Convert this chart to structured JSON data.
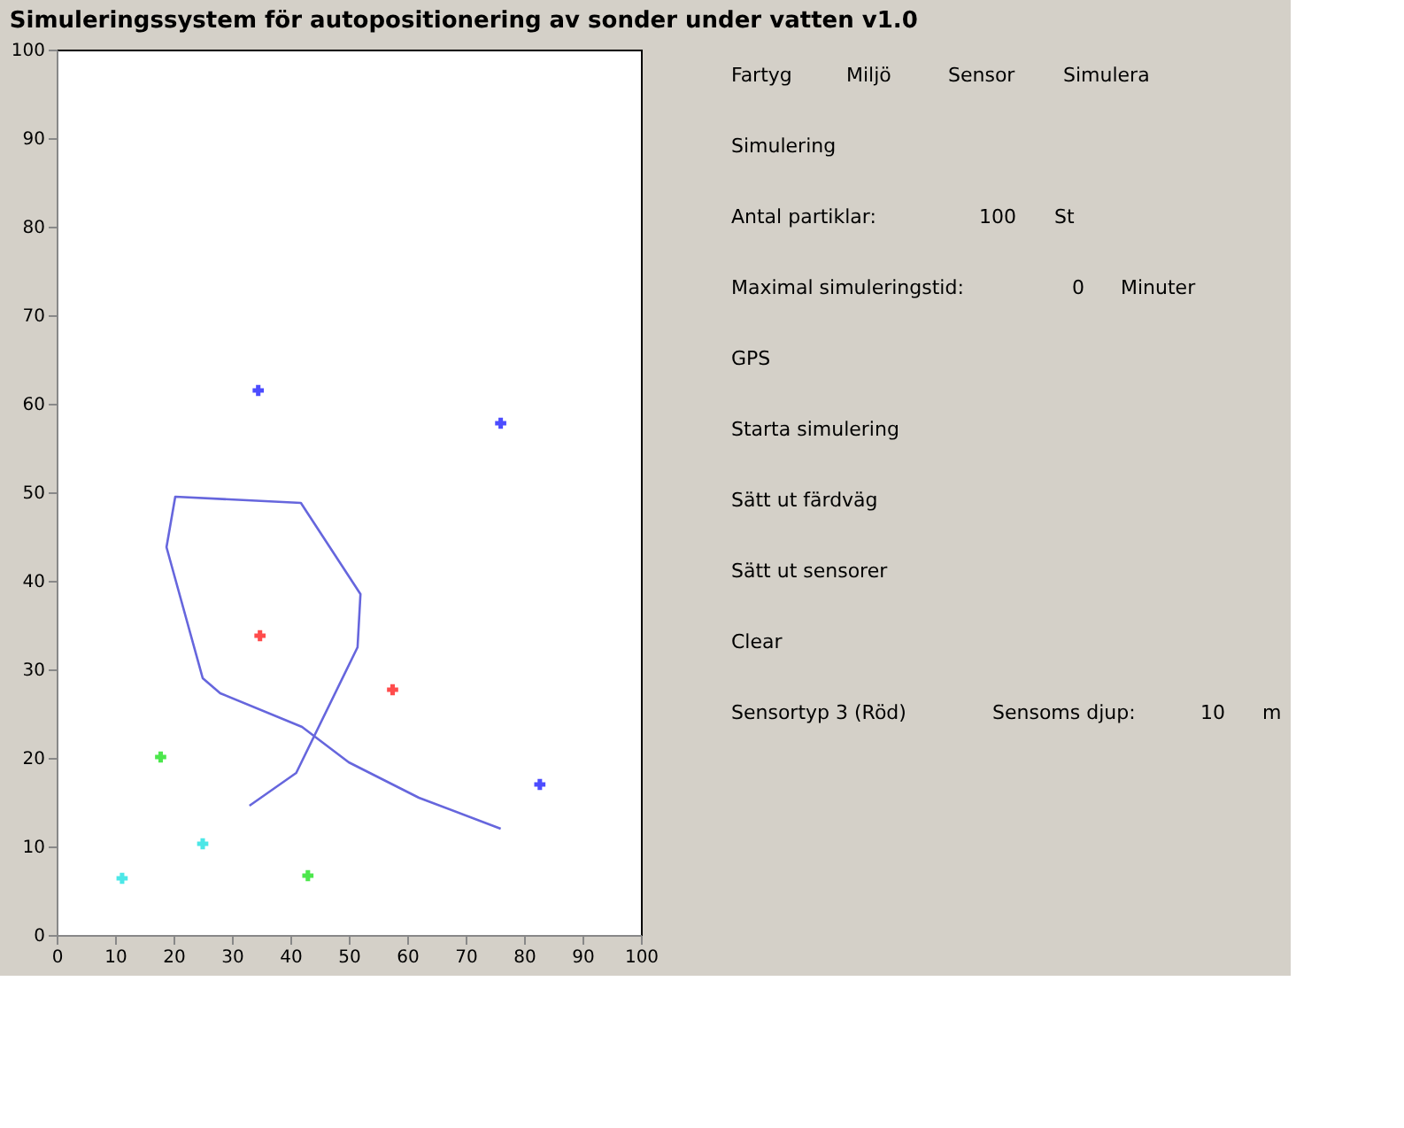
{
  "chart_data": {
    "type": "scatter",
    "title": "Simuleringssystem för autopositionering av sonder under vatten v1.0",
    "xlim": [
      0,
      100
    ],
    "ylim": [
      0,
      100
    ],
    "xticks": [
      0,
      10,
      20,
      30,
      40,
      50,
      60,
      70,
      80,
      90,
      100
    ],
    "yticks": [
      0,
      10,
      20,
      30,
      40,
      50,
      60,
      70,
      80,
      90,
      100
    ],
    "grid": false,
    "marker": "cross",
    "series": [
      {
        "type": "line",
        "marker": "none",
        "color": "#6666dd",
        "x": [
          33,
          41,
          51.5,
          52,
          41.8,
          20.3,
          18.8,
          25,
          28,
          42,
          50,
          62,
          76
        ],
        "values": [
          14.6,
          18.3,
          32.5,
          38.5,
          48.8,
          49.5,
          43.8,
          29,
          27.3,
          23.5,
          19.5,
          15.5,
          12
        ]
      },
      {
        "color": "#0000ff",
        "x": [
          34.5,
          76,
          82.7
        ],
        "values": [
          61.5,
          57.8,
          17
        ]
      },
      {
        "color": "#ff0000",
        "x": [
          34.8,
          57.5
        ],
        "values": [
          33.8,
          27.7
        ]
      },
      {
        "color": "#00dd00",
        "x": [
          17.8,
          43
        ],
        "values": [
          20.1,
          6.7
        ]
      },
      {
        "color": "#00dddd",
        "x": [
          11.2,
          25
        ],
        "values": [
          6.4,
          10.3
        ]
      }
    ],
    "annotations": [
      "Fartyg",
      "Miljö",
      "Sensor",
      "Simulera",
      "Simulering",
      "Antal partiklar:",
      "100",
      "St",
      "Maximal simuleringstid:",
      "0",
      "Minuter",
      "GPS",
      "Starta simulering",
      "Sätt ut färdväg",
      "Sätt ut sensorer",
      "Clear",
      "Sensortyp 3 (Röd)",
      "Sensoms djup:",
      "10",
      "m"
    ]
  }
}
